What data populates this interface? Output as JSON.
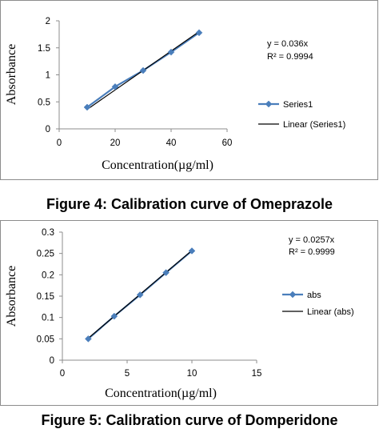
{
  "chart_data": [
    {
      "type": "scatter",
      "caption": "Figure 4: Calibration curve of Omeprazole",
      "xlabel": "Concentration(µg/ml)",
      "ylabel": "Absorbance",
      "xlim": [
        0,
        60
      ],
      "ylim": [
        0,
        2
      ],
      "xticks": [
        0,
        20,
        40,
        60
      ],
      "yticks": [
        0,
        0.5,
        1,
        1.5,
        2
      ],
      "x_tick_labels": [
        "0",
        "20",
        "40",
        "60"
      ],
      "y_tick_labels": [
        "0",
        "0.5",
        "1",
        "1.5",
        "2"
      ],
      "series": [
        {
          "name": "Series1",
          "x": [
            10,
            20,
            30,
            40,
            50
          ],
          "y": [
            0.4,
            0.78,
            1.08,
            1.42,
            1.78
          ],
          "color": "#4a7ebb",
          "marker": "diamond"
        }
      ],
      "trendline": {
        "name": "Linear (Series1)",
        "slope": 0.036,
        "color": "#000000"
      },
      "annotations": [
        "y = 0.036x",
        "R² = 0.9994"
      ],
      "grid": false,
      "legend": "right"
    },
    {
      "type": "scatter",
      "caption": "Figure 5: Calibration curve of Domperidone",
      "xlabel": "Concentration(µg/ml)",
      "ylabel": "Absorbance",
      "xlim": [
        0,
        15
      ],
      "ylim": [
        0,
        0.3
      ],
      "xticks": [
        0,
        5,
        10,
        15
      ],
      "yticks": [
        0,
        0.05,
        0.1,
        0.15,
        0.2,
        0.25,
        0.3
      ],
      "x_tick_labels": [
        "0",
        "5",
        "10",
        "15"
      ],
      "y_tick_labels": [
        "0",
        "0.05",
        "0.1",
        "0.15",
        "0.2",
        "0.25",
        "0.3"
      ],
      "series": [
        {
          "name": "abs",
          "x": [
            2,
            4,
            6,
            8,
            10
          ],
          "y": [
            0.05,
            0.103,
            0.153,
            0.205,
            0.256
          ],
          "color": "#4a7ebb",
          "marker": "diamond"
        }
      ],
      "trendline": {
        "name": "Linear (abs)",
        "slope": 0.0257,
        "color": "#000000"
      },
      "annotations": [
        "y = 0.0257x",
        "R² = 0.9999"
      ],
      "grid": false,
      "legend": "right"
    }
  ]
}
